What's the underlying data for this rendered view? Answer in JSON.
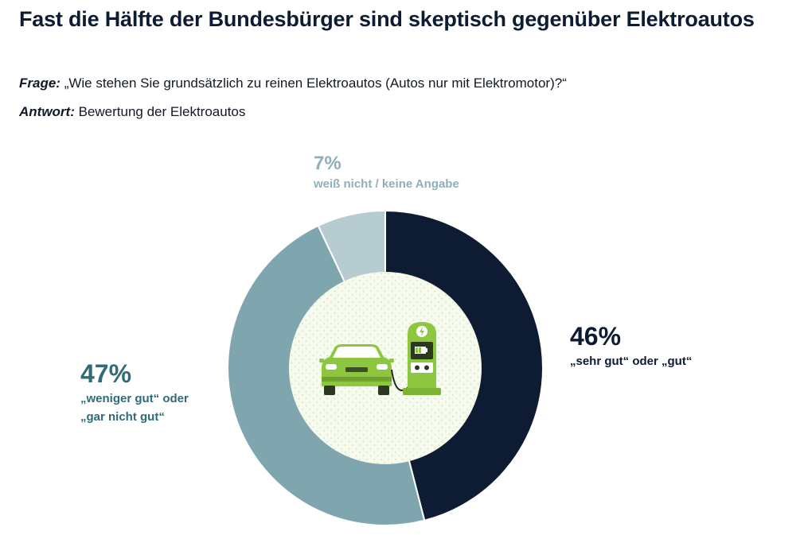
{
  "header": {
    "title": "Fast die Hälfte der Bundesbürger sind skeptisch gegenüber Elektroautos",
    "question_label": "Frage:",
    "question_text": " „Wie stehen Sie grundsätzlich zu reinen Elektroautos (Autos nur mit Elektromotor)?“",
    "answer_label": "Antwort:",
    "answer_text": " Bewertung der Elektroautos"
  },
  "colors": {
    "good": "#0d1b33",
    "bad": "#7fa6ae",
    "dont_know": "#b7ccd1",
    "car": "#8dc63f",
    "center_bg": "#f6f9ee"
  },
  "chart_data": {
    "type": "pie",
    "variant": "donut",
    "slices": [
      {
        "key": "good",
        "value": 46,
        "pct_label": "46%",
        "label": "„sehr gut“ oder „gut“"
      },
      {
        "key": "bad",
        "value": 47,
        "pct_label": "47%",
        "label_line1": "„weniger gut“ oder",
        "label_line2": "„gar nicht gut“"
      },
      {
        "key": "dont_know",
        "value": 7,
        "pct_label": "7%",
        "label": "weiß nicht / keine Angabe"
      }
    ]
  },
  "icons": {
    "center": "electric-car-charging-icon"
  }
}
